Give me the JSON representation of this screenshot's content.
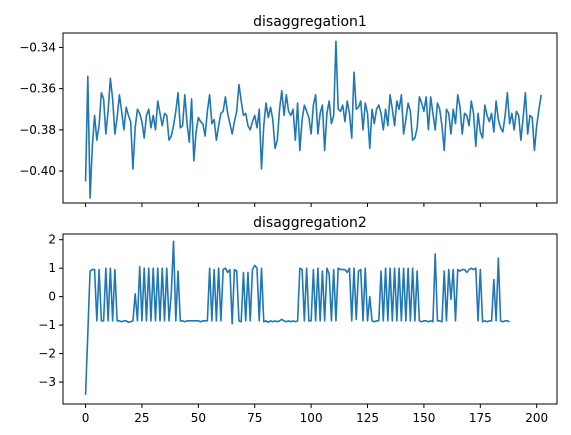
{
  "colors": {
    "series": "#1f77b4"
  },
  "chart_data": [
    {
      "type": "line",
      "title": "disaggregation1",
      "xlabel": "",
      "ylabel": "",
      "xlim": [
        -10,
        209
      ],
      "ylim": [
        -0.4155,
        -0.333
      ],
      "xticks": [
        0,
        25,
        50,
        75,
        100,
        125,
        150,
        175,
        200
      ],
      "xtick_labels_visible": false,
      "yticks": [
        -0.4,
        -0.38,
        -0.36,
        -0.34
      ],
      "ytick_labels": [
        "−0.40",
        "−0.38",
        "−0.36",
        "−0.34"
      ],
      "grid": false,
      "series": [
        {
          "y": [
            -0.405,
            -0.354,
            -0.413,
            -0.388,
            -0.373,
            -0.385,
            -0.378,
            -0.362,
            -0.365,
            -0.382,
            -0.371,
            -0.355,
            -0.365,
            -0.382,
            -0.374,
            -0.363,
            -0.371,
            -0.38,
            -0.369,
            -0.373,
            -0.376,
            -0.399,
            -0.379,
            -0.37,
            -0.372,
            -0.376,
            -0.384,
            -0.373,
            -0.37,
            -0.379,
            -0.373,
            -0.38,
            -0.366,
            -0.372,
            -0.378,
            -0.372,
            -0.373,
            -0.385,
            -0.383,
            -0.378,
            -0.371,
            -0.362,
            -0.379,
            -0.378,
            -0.363,
            -0.377,
            -0.386,
            -0.365,
            -0.395,
            -0.381,
            -0.374,
            -0.376,
            -0.377,
            -0.383,
            -0.371,
            -0.363,
            -0.377,
            -0.375,
            -0.385,
            -0.378,
            -0.372,
            -0.371,
            -0.364,
            -0.372,
            -0.377,
            -0.382,
            -0.376,
            -0.371,
            -0.358,
            -0.366,
            -0.373,
            -0.372,
            -0.378,
            -0.38,
            -0.376,
            -0.373,
            -0.379,
            -0.37,
            -0.399,
            -0.378,
            -0.367,
            -0.374,
            -0.369,
            -0.375,
            -0.389,
            -0.385,
            -0.37,
            -0.361,
            -0.373,
            -0.363,
            -0.371,
            -0.373,
            -0.37,
            -0.385,
            -0.367,
            -0.39,
            -0.375,
            -0.368,
            -0.371,
            -0.374,
            -0.382,
            -0.368,
            -0.363,
            -0.382,
            -0.372,
            -0.368,
            -0.39,
            -0.372,
            -0.366,
            -0.377,
            -0.373,
            -0.337,
            -0.37,
            -0.371,
            -0.368,
            -0.376,
            -0.366,
            -0.372,
            -0.384,
            -0.352,
            -0.37,
            -0.369,
            -0.366,
            -0.38,
            -0.367,
            -0.372,
            -0.389,
            -0.37,
            -0.377,
            -0.37,
            -0.368,
            -0.372,
            -0.38,
            -0.37,
            -0.378,
            -0.363,
            -0.37,
            -0.378,
            -0.366,
            -0.37,
            -0.363,
            -0.382,
            -0.375,
            -0.367,
            -0.371,
            -0.385,
            -0.384,
            -0.379,
            -0.364,
            -0.367,
            -0.371,
            -0.364,
            -0.38,
            -0.364,
            -0.372,
            -0.38,
            -0.367,
            -0.37,
            -0.378,
            -0.39,
            -0.37,
            -0.372,
            -0.382,
            -0.37,
            -0.377,
            -0.363,
            -0.369,
            -0.382,
            -0.372,
            -0.373,
            -0.378,
            -0.366,
            -0.372,
            -0.388,
            -0.372,
            -0.381,
            -0.384,
            -0.368,
            -0.373,
            -0.376,
            -0.372,
            -0.381,
            -0.366,
            -0.375,
            -0.379,
            -0.381,
            -0.373,
            -0.362,
            -0.377,
            -0.372,
            -0.38,
            -0.371,
            -0.373,
            -0.385,
            -0.374,
            -0.362,
            -0.382,
            -0.373,
            -0.374,
            -0.39,
            -0.378,
            -0.37,
            -0.363
          ]
        }
      ]
    },
    {
      "type": "line",
      "title": "disaggregation2",
      "xlabel": "",
      "ylabel": "",
      "xlim": [
        -10,
        209
      ],
      "ylim": [
        -3.77,
        2.2
      ],
      "xticks": [
        0,
        25,
        50,
        75,
        100,
        125,
        150,
        175,
        200
      ],
      "xtick_labels": [
        "0",
        "25",
        "50",
        "75",
        "100",
        "125",
        "150",
        "175",
        "200"
      ],
      "yticks": [
        -3,
        -2,
        -1,
        0,
        1,
        2
      ],
      "ytick_labels": [
        "−3",
        "−2",
        "−1",
        "0",
        "1",
        "2"
      ],
      "grid": false,
      "series": [
        {
          "y": [
            -3.45,
            -1.3,
            0.9,
            0.95,
            0.95,
            -0.85,
            0.95,
            -0.85,
            -0.85,
            1.0,
            -0.85,
            1.0,
            -0.85,
            0.95,
            -0.85,
            -0.85,
            -0.88,
            -0.85,
            -0.85,
            -0.9,
            -0.88,
            -0.85,
            0.1,
            -0.85,
            1.05,
            -0.85,
            1.0,
            -0.85,
            1.0,
            -0.85,
            1.0,
            -0.85,
            1.0,
            -0.85,
            1.0,
            -0.85,
            1.0,
            -0.85,
            0.1,
            1.95,
            -0.85,
            0.9,
            -0.85,
            -0.85,
            -0.88,
            -0.85,
            -0.85,
            -0.85,
            -0.85,
            -0.85,
            -0.85,
            -0.88,
            -0.85,
            -0.85,
            -0.85,
            1.0,
            -0.85,
            0.95,
            -0.85,
            1.0,
            -0.85,
            0.95,
            1.0,
            0.85,
            0.95,
            -0.95,
            0.95,
            0.9,
            -0.85,
            -0.88,
            0.85,
            -0.85,
            0.85,
            -0.85,
            0.95,
            1.1,
            1.0,
            -0.85,
            1.0,
            -0.88,
            -0.85,
            -0.9,
            -0.85,
            -0.88,
            -0.85,
            -0.88,
            -0.85,
            -0.8,
            -0.85,
            -0.88,
            -0.85,
            -0.88,
            -0.85,
            -0.88,
            -0.85,
            1.0,
            0.95,
            -0.85,
            1.0,
            -0.85,
            -0.85,
            0.95,
            -0.85,
            1.0,
            -0.85,
            0.9,
            -0.85,
            1.0,
            0.8,
            -0.85,
            0.95,
            -0.85,
            1.0,
            0.95,
            0.95,
            0.95,
            0.85,
            1.0,
            -0.85,
            1.0,
            -0.8,
            0.9,
            0.95,
            -0.85,
            1.0,
            -0.85,
            0.0,
            -0.85,
            -0.88,
            -0.85,
            -0.85,
            0.9,
            -0.85,
            1.0,
            -0.85,
            1.0,
            -0.85,
            1.0,
            -0.85,
            1.0,
            -0.85,
            1.0,
            -0.85,
            1.0,
            -0.85,
            1.0,
            -0.85,
            0.9,
            -0.85,
            -0.88,
            -0.85,
            -0.85,
            -0.88,
            -0.85,
            -0.88,
            1.5,
            -0.85,
            -0.85,
            -0.88,
            0.9,
            -0.85,
            0.95,
            -0.1,
            0.95,
            -0.85,
            0.95,
            0.9,
            0.95,
            0.95,
            0.85,
            0.95,
            1.0,
            0.95,
            1.0,
            -0.85,
            0.95,
            -0.88,
            -0.85,
            -0.88,
            -0.85,
            -0.85,
            0.6,
            -0.85,
            1.35,
            -0.85,
            -0.88,
            -0.85,
            -0.85,
            -0.88
          ]
        }
      ]
    }
  ]
}
